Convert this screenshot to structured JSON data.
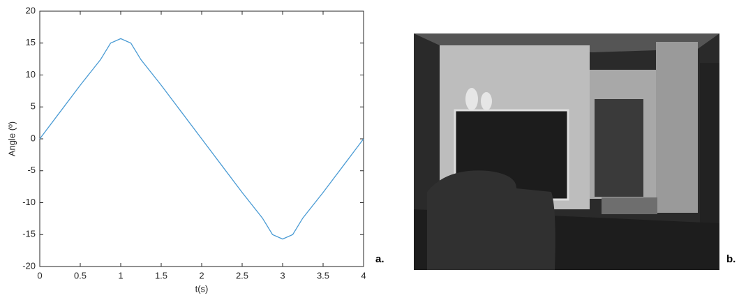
{
  "chart_data": {
    "type": "line",
    "xlabel": "t(s)",
    "ylabel": "Angle (º)",
    "x": [
      0,
      0.25,
      0.5,
      0.75,
      0.875,
      1,
      1.125,
      1.25,
      1.5,
      1.75,
      2,
      2.25,
      2.5,
      2.75,
      2.875,
      3,
      3.125,
      3.25,
      3.5,
      3.75,
      4
    ],
    "series": [
      {
        "color": "#4a9bd4",
        "values": [
          0,
          4.2,
          8.4,
          12.4,
          15.0,
          15.7,
          15.0,
          12.4,
          8.4,
          4.2,
          0,
          -4.2,
          -8.4,
          -12.4,
          -15.0,
          -15.7,
          -15.0,
          -12.4,
          -8.4,
          -4.2,
          0
        ]
      }
    ],
    "xlim": [
      0,
      4
    ],
    "xticks": [
      0,
      0.5,
      1,
      1.5,
      2,
      2.5,
      3,
      3.5,
      4
    ],
    "ylim": [
      -20,
      20
    ],
    "yticks": [
      -20,
      -15,
      -10,
      -5,
      0,
      5,
      10,
      15,
      20
    ],
    "grid": false
  },
  "panel_labels": [
    "a.",
    "b."
  ]
}
